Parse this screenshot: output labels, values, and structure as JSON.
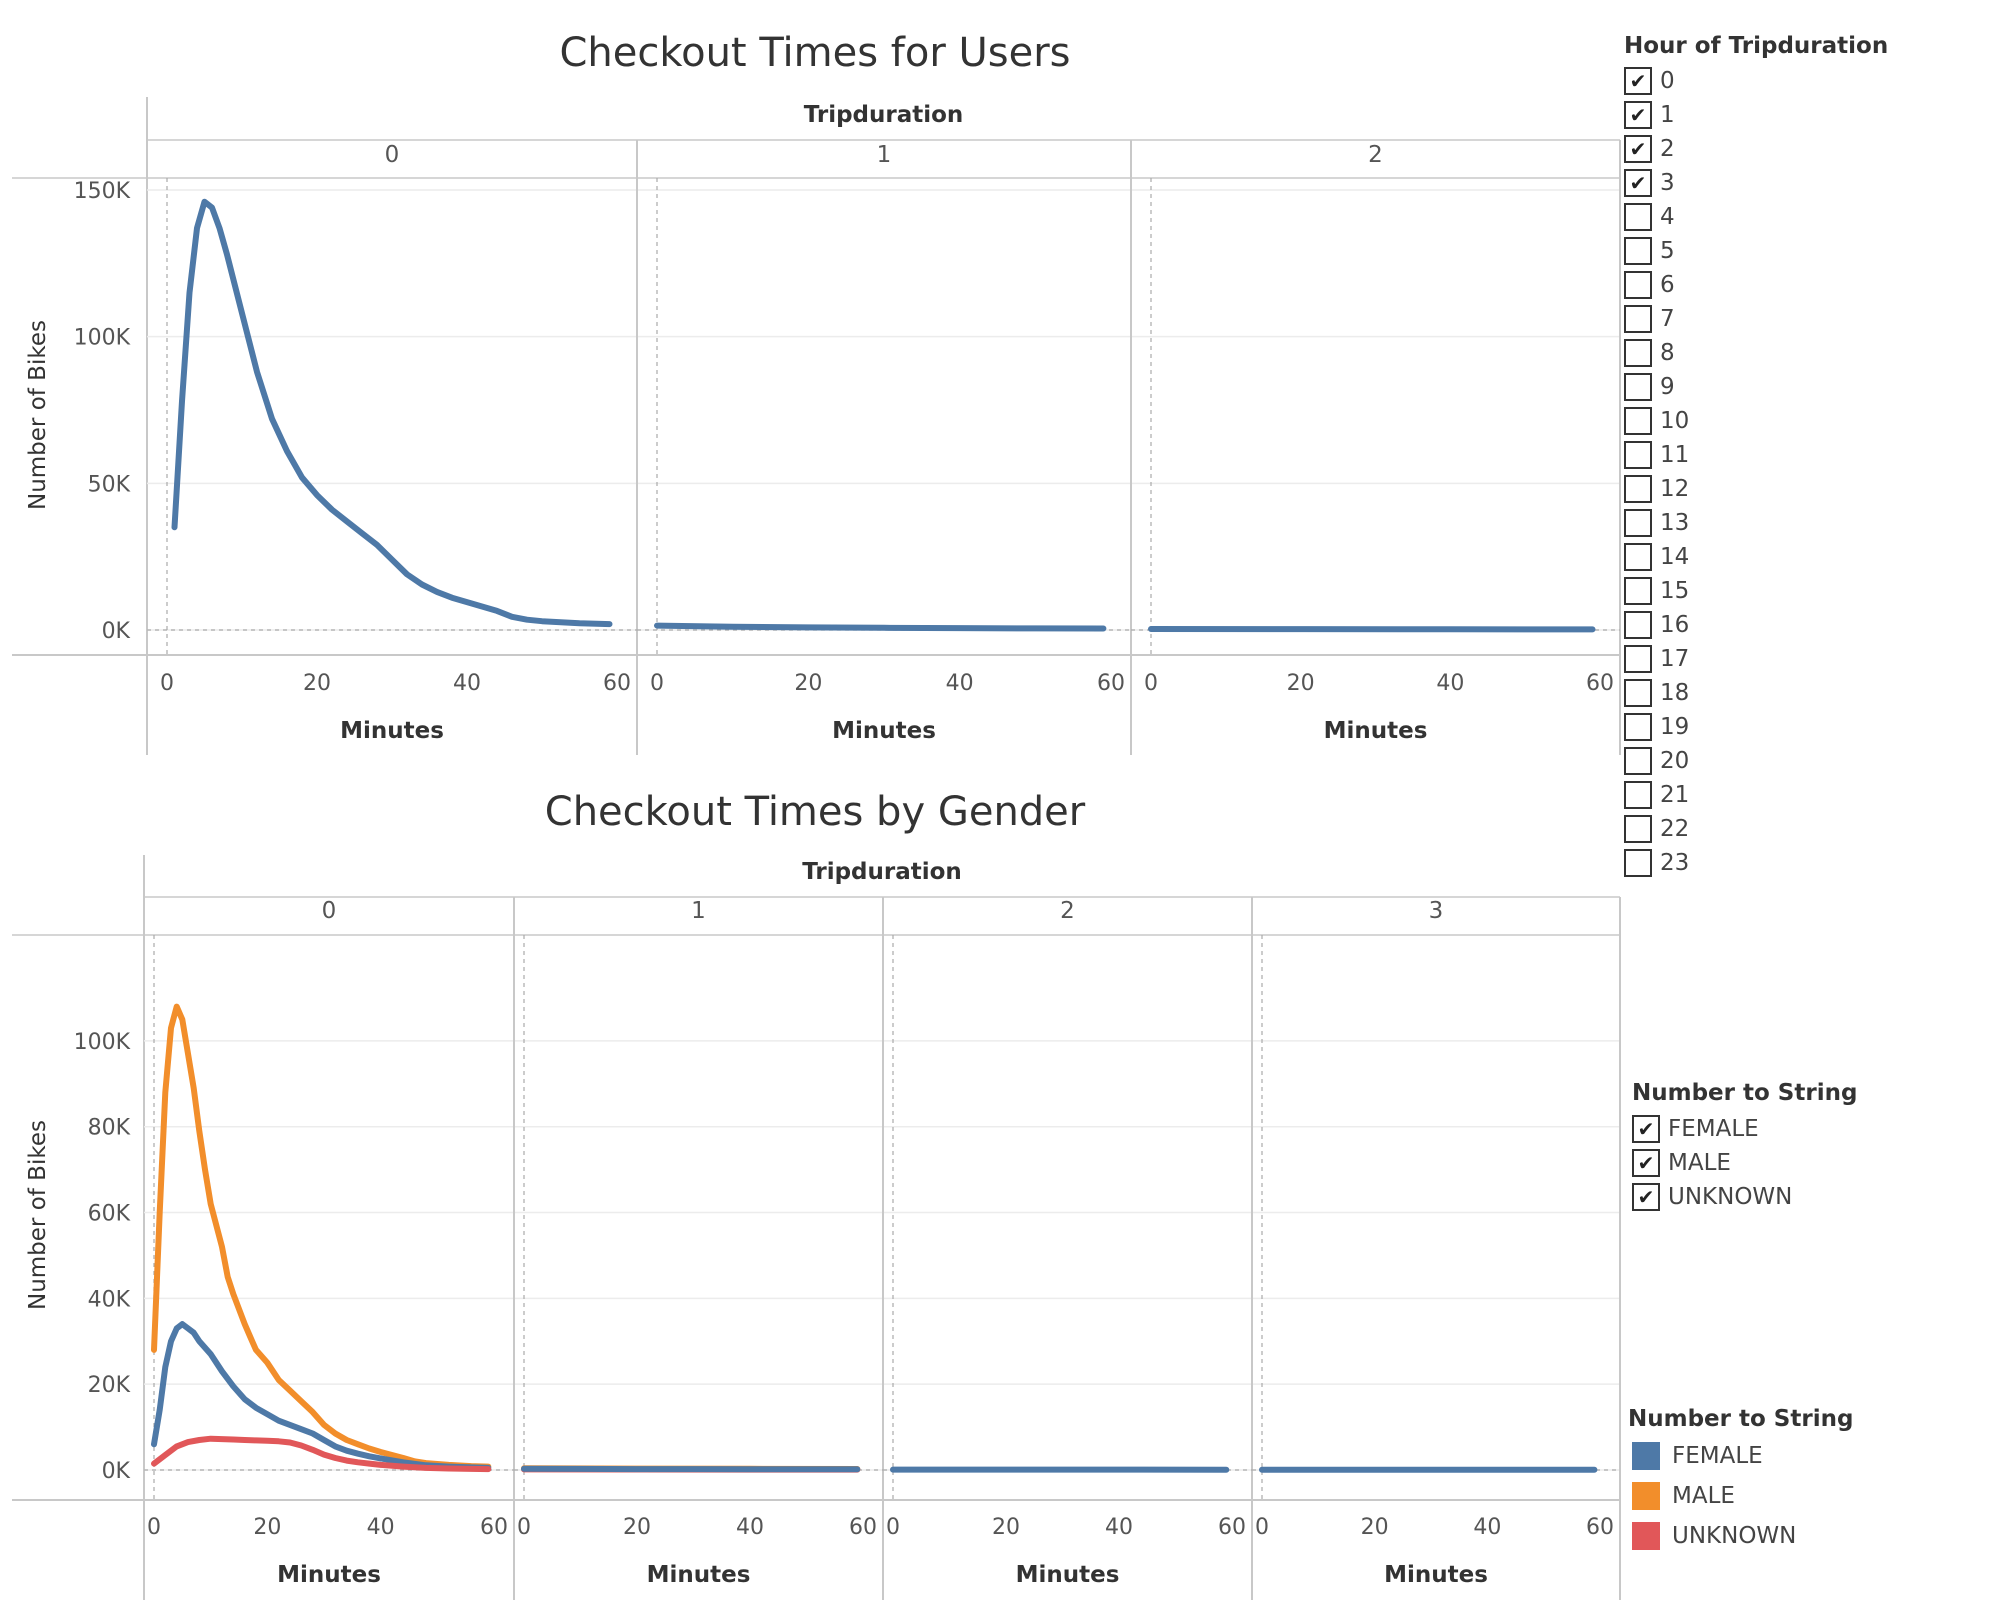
{
  "colors": {
    "users_line": "#4e79a7",
    "female": "#4e79a7",
    "male": "#f28e2b",
    "unknown": "#e15759",
    "grid": "#ececec",
    "axis": "#c8c8c8",
    "text": "#555555"
  },
  "chart_data": [
    {
      "type": "line",
      "title": "Checkout Times for Users",
      "facet_label": "Tripduration",
      "xlabel": "Minutes",
      "ylabel": "Number of Bikes",
      "xlim": [
        0,
        60
      ],
      "ylim": [
        0,
        150000
      ],
      "x_ticks": [
        "0",
        "20",
        "40",
        "60"
      ],
      "y_ticks": [
        {
          "value": 0,
          "label": "0K"
        },
        {
          "value": 50000,
          "label": "50K"
        },
        {
          "value": 100000,
          "label": "100K"
        },
        {
          "value": 150000,
          "label": "150K"
        }
      ],
      "panels": [
        {
          "label": "0",
          "series": [
            {
              "color_key": "users_line",
              "points": [
                [
                  1,
                  35000
                ],
                [
                  2,
                  78000
                ],
                [
                  3,
                  115000
                ],
                [
                  4,
                  137000
                ],
                [
                  5,
                  146000
                ],
                [
                  6,
                  144000
                ],
                [
                  7,
                  137000
                ],
                [
                  8,
                  128000
                ],
                [
                  9,
                  118000
                ],
                [
                  10,
                  108000
                ],
                [
                  12,
                  88000
                ],
                [
                  14,
                  72000
                ],
                [
                  16,
                  61000
                ],
                [
                  18,
                  52000
                ],
                [
                  20,
                  46000
                ],
                [
                  22,
                  41000
                ],
                [
                  24,
                  37000
                ],
                [
                  26,
                  33000
                ],
                [
                  28,
                  29000
                ],
                [
                  30,
                  24000
                ],
                [
                  32,
                  19000
                ],
                [
                  34,
                  15500
                ],
                [
                  36,
                  13000
                ],
                [
                  38,
                  11000
                ],
                [
                  40,
                  9500
                ],
                [
                  42,
                  8000
                ],
                [
                  44,
                  6500
                ],
                [
                  46,
                  4500
                ],
                [
                  48,
                  3500
                ],
                [
                  50,
                  3000
                ],
                [
                  55,
                  2300
                ],
                [
                  59,
                  2000
                ]
              ]
            }
          ]
        },
        {
          "label": "1",
          "series": [
            {
              "color_key": "users_line",
              "points": [
                [
                  0,
                  1500
                ],
                [
                  10,
                  1100
                ],
                [
                  20,
                  900
                ],
                [
                  30,
                  750
                ],
                [
                  40,
                  650
                ],
                [
                  50,
                  550
                ],
                [
                  59,
                  500
                ]
              ]
            }
          ]
        },
        {
          "label": "2",
          "series": [
            {
              "color_key": "users_line",
              "points": [
                [
                  0,
                  350
                ],
                [
                  20,
                  300
                ],
                [
                  40,
                  250
                ],
                [
                  59,
                  200
                ]
              ]
            }
          ]
        }
      ]
    },
    {
      "type": "line",
      "title": "Checkout Times by Gender",
      "facet_label": "Tripduration",
      "xlabel": "Minutes",
      "ylabel": "Number of Bikes",
      "xlim": [
        0,
        60
      ],
      "ylim": [
        0,
        110000
      ],
      "x_ticks": [
        "0",
        "20",
        "40",
        "60"
      ],
      "y_ticks": [
        {
          "value": 0,
          "label": "0K"
        },
        {
          "value": 20000,
          "label": "20K"
        },
        {
          "value": 40000,
          "label": "40K"
        },
        {
          "value": 60000,
          "label": "60K"
        },
        {
          "value": 80000,
          "label": "80K"
        },
        {
          "value": 100000,
          "label": "100K"
        }
      ],
      "panels": [
        {
          "label": "0",
          "series": [
            {
              "name": "MALE",
              "color_key": "male",
              "points": [
                [
                  0,
                  28000
                ],
                [
                  1,
                  60000
                ],
                [
                  2,
                  88000
                ],
                [
                  3,
                  103000
                ],
                [
                  4,
                  108000
                ],
                [
                  5,
                  105000
                ],
                [
                  6,
                  97000
                ],
                [
                  7,
                  89000
                ],
                [
                  8,
                  79000
                ],
                [
                  9,
                  70000
                ],
                [
                  10,
                  62000
                ],
                [
                  12,
                  52000
                ],
                [
                  13,
                  45000
                ],
                [
                  14,
                  41000
                ],
                [
                  16,
                  34000
                ],
                [
                  17,
                  31000
                ],
                [
                  18,
                  28000
                ],
                [
                  20,
                  25000
                ],
                [
                  22,
                  21000
                ],
                [
                  24,
                  18500
                ],
                [
                  26,
                  16000
                ],
                [
                  28,
                  13500
                ],
                [
                  30,
                  10500
                ],
                [
                  32,
                  8500
                ],
                [
                  34,
                  7000
                ],
                [
                  36,
                  6000
                ],
                [
                  38,
                  5000
                ],
                [
                  40,
                  4200
                ],
                [
                  42,
                  3500
                ],
                [
                  44,
                  2800
                ],
                [
                  46,
                  2000
                ],
                [
                  48,
                  1600
                ],
                [
                  52,
                  1200
                ],
                [
                  56,
                  900
                ],
                [
                  59,
                  800
                ]
              ]
            },
            {
              "name": "FEMALE",
              "color_key": "female",
              "points": [
                [
                  0,
                  6000
                ],
                [
                  1,
                  14000
                ],
                [
                  2,
                  24000
                ],
                [
                  3,
                  30000
                ],
                [
                  4,
                  33000
                ],
                [
                  5,
                  34000
                ],
                [
                  6,
                  33000
                ],
                [
                  7,
                  32000
                ],
                [
                  8,
                  30000
                ],
                [
                  10,
                  27000
                ],
                [
                  12,
                  23000
                ],
                [
                  14,
                  19500
                ],
                [
                  16,
                  16500
                ],
                [
                  18,
                  14500
                ],
                [
                  20,
                  13000
                ],
                [
                  22,
                  11500
                ],
                [
                  24,
                  10500
                ],
                [
                  26,
                  9500
                ],
                [
                  28,
                  8500
                ],
                [
                  30,
                  7000
                ],
                [
                  32,
                  5500
                ],
                [
                  34,
                  4500
                ],
                [
                  36,
                  3800
                ],
                [
                  38,
                  3200
                ],
                [
                  40,
                  2700
                ],
                [
                  44,
                  1800
                ],
                [
                  48,
                  1100
                ],
                [
                  52,
                  800
                ],
                [
                  56,
                  600
                ],
                [
                  59,
                  500
                ]
              ]
            },
            {
              "name": "UNKNOWN",
              "color_key": "unknown",
              "points": [
                [
                  0,
                  1500
                ],
                [
                  2,
                  3500
                ],
                [
                  4,
                  5500
                ],
                [
                  6,
                  6500
                ],
                [
                  8,
                  7000
                ],
                [
                  10,
                  7300
                ],
                [
                  12,
                  7200
                ],
                [
                  14,
                  7100
                ],
                [
                  16,
                  7000
                ],
                [
                  18,
                  6900
                ],
                [
                  20,
                  6800
                ],
                [
                  22,
                  6700
                ],
                [
                  24,
                  6400
                ],
                [
                  26,
                  5700
                ],
                [
                  28,
                  4700
                ],
                [
                  30,
                  3600
                ],
                [
                  32,
                  2800
                ],
                [
                  34,
                  2200
                ],
                [
                  36,
                  1800
                ],
                [
                  38,
                  1500
                ],
                [
                  40,
                  1200
                ],
                [
                  44,
                  800
                ],
                [
                  48,
                  500
                ],
                [
                  52,
                  350
                ],
                [
                  56,
                  250
                ],
                [
                  59,
                  200
                ]
              ]
            }
          ]
        },
        {
          "label": "1",
          "series": [
            {
              "name": "MALE",
              "color_key": "male",
              "points": [
                [
                  0,
                  400
                ],
                [
                  20,
                  330
                ],
                [
                  40,
                  280
                ],
                [
                  59,
                  240
                ]
              ]
            },
            {
              "name": "UNKNOWN",
              "color_key": "unknown",
              "points": [
                [
                  0,
                  150
                ],
                [
                  20,
                  120
                ],
                [
                  40,
                  100
                ],
                [
                  59,
                  90
                ]
              ]
            },
            {
              "name": "FEMALE",
              "color_key": "female",
              "points": [
                [
                  0,
                  300
                ],
                [
                  10,
                  250
                ],
                [
                  20,
                  220
                ],
                [
                  30,
                  200
                ],
                [
                  40,
                  190
                ],
                [
                  50,
                  180
                ],
                [
                  59,
                  170
                ]
              ]
            }
          ]
        },
        {
          "label": "2",
          "series": [
            {
              "name": "FEMALE",
              "color_key": "female",
              "points": [
                [
                  0,
                  100
                ],
                [
                  20,
                  90
                ],
                [
                  40,
                  85
                ],
                [
                  59,
                  80
                ]
              ]
            }
          ]
        },
        {
          "label": "3",
          "series": [
            {
              "name": "FEMALE",
              "color_key": "female",
              "points": [
                [
                  0,
                  60
                ],
                [
                  20,
                  55
                ],
                [
                  40,
                  50
                ],
                [
                  59,
                  45
                ]
              ]
            }
          ]
        }
      ]
    }
  ],
  "hour_filter": {
    "title": "Hour of Tripduration",
    "items": [
      {
        "label": "0",
        "checked": true
      },
      {
        "label": "1",
        "checked": true
      },
      {
        "label": "2",
        "checked": true
      },
      {
        "label": "3",
        "checked": true
      },
      {
        "label": "4",
        "checked": false
      },
      {
        "label": "5",
        "checked": false
      },
      {
        "label": "6",
        "checked": false
      },
      {
        "label": "7",
        "checked": false
      },
      {
        "label": "8",
        "checked": false
      },
      {
        "label": "9",
        "checked": false
      },
      {
        "label": "10",
        "checked": false
      },
      {
        "label": "11",
        "checked": false
      },
      {
        "label": "12",
        "checked": false
      },
      {
        "label": "13",
        "checked": false
      },
      {
        "label": "14",
        "checked": false
      },
      {
        "label": "15",
        "checked": false
      },
      {
        "label": "16",
        "checked": false
      },
      {
        "label": "17",
        "checked": false
      },
      {
        "label": "18",
        "checked": false
      },
      {
        "label": "19",
        "checked": false
      },
      {
        "label": "20",
        "checked": false
      },
      {
        "label": "21",
        "checked": false
      },
      {
        "label": "22",
        "checked": false
      },
      {
        "label": "23",
        "checked": false
      }
    ]
  },
  "gender_filter": {
    "title": "Number to String",
    "items": [
      {
        "label": "FEMALE",
        "checked": true
      },
      {
        "label": "MALE",
        "checked": true
      },
      {
        "label": "UNKNOWN",
        "checked": true
      }
    ]
  },
  "gender_legend": {
    "title": "Number to String",
    "items": [
      {
        "label": "FEMALE",
        "color_key": "female"
      },
      {
        "label": "MALE",
        "color_key": "male"
      },
      {
        "label": "UNKNOWN",
        "color_key": "unknown"
      }
    ]
  },
  "check_glyph": "✔"
}
